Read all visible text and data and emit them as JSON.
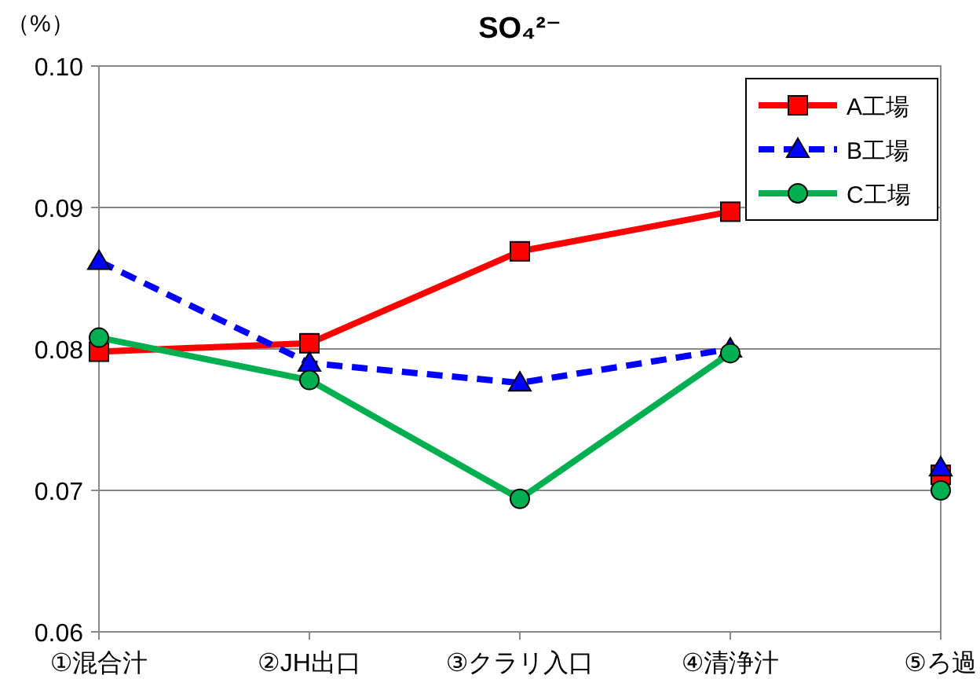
{
  "chart_data": {
    "type": "line",
    "title": "SO₄²⁻",
    "ylabel": "（%）",
    "categories": [
      "①混合汁",
      "②JH出口",
      "③クラリ入口",
      "④清浄汁",
      "⑤ろ過"
    ],
    "series": [
      {
        "name": "A工場",
        "color": "#ff0000",
        "marker": "square",
        "line_style": "solid",
        "values": [
          0.0798,
          0.0804,
          0.0869,
          0.0897,
          null
        ]
      },
      {
        "name": "B工場",
        "color": "#0000ff",
        "marker": "triangle",
        "line_style": "dashed",
        "values": [
          0.0862,
          0.079,
          0.0776,
          0.08,
          null
        ]
      },
      {
        "name": "C工場",
        "color": "#00b050",
        "marker": "circle",
        "line_style": "solid",
        "values": [
          0.0808,
          0.0778,
          0.0694,
          0.0797,
          null
        ]
      },
      {
        "type": "scatter",
        "color": "#ff0000",
        "marker": "square",
        "x": [
          "⑤ろ過"
        ],
        "values": [
          0.0711
        ]
      },
      {
        "type": "scatter",
        "color": "#0000ff",
        "marker": "triangle",
        "x": [
          "⑤ろ過"
        ],
        "values": [
          0.0716
        ]
      },
      {
        "type": "scatter",
        "color": "#00b050",
        "marker": "circle",
        "x": [
          "⑤ろ過"
        ],
        "values": [
          0.07
        ]
      }
    ],
    "ylim": [
      0.06,
      0.1
    ],
    "yticks": [
      {
        "value": 0.06,
        "label": "0.06"
      },
      {
        "value": 0.07,
        "label": "0.07"
      },
      {
        "value": 0.08,
        "label": "0.08"
      },
      {
        "value": 0.09,
        "label": "0.09"
      },
      {
        "value": 0.1,
        "label": "0.10"
      }
    ],
    "grid": "y",
    "legend": "top right"
  }
}
